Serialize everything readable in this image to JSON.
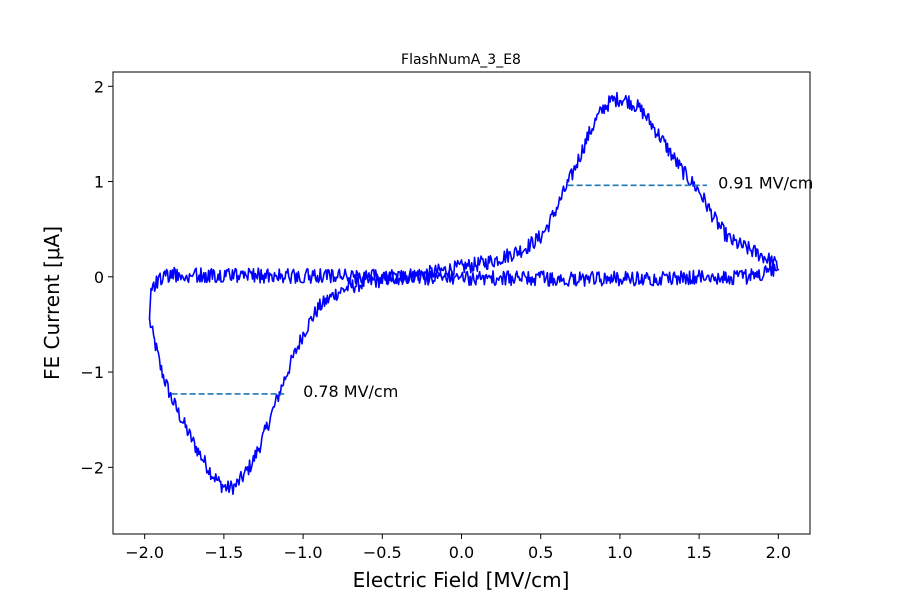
{
  "chart_data": {
    "type": "line",
    "title": "FlashNumA_3_E8",
    "xlabel": "Electric Field [MV/cm]",
    "ylabel": "FE Current [μA]",
    "xlim": [
      -2.2,
      2.2
    ],
    "ylim": [
      -2.7,
      2.15
    ],
    "grid": false,
    "x_ticks": [
      -2.0,
      -1.5,
      -1.0,
      -0.5,
      0.0,
      0.5,
      1.0,
      1.5,
      2.0
    ],
    "x_tick_labels": [
      "−2.0",
      "−1.5",
      "−1.0",
      "−0.5",
      "0.0",
      "0.5",
      "1.0",
      "1.5",
      "2.0"
    ],
    "y_ticks": [
      -2,
      -1,
      0,
      1,
      2
    ],
    "y_tick_labels": [
      "−2",
      "−1",
      "0",
      "1",
      "2"
    ],
    "series": [
      {
        "color": "#0000ff",
        "noise_amplitude": 0.08,
        "points": [
          [
            -1.97,
            -0.45
          ],
          [
            -1.95,
            -0.6
          ],
          [
            -1.92,
            -0.8
          ],
          [
            -1.9,
            -0.95
          ],
          [
            -1.87,
            -1.1
          ],
          [
            -1.83,
            -1.28
          ],
          [
            -1.78,
            -1.45
          ],
          [
            -1.73,
            -1.62
          ],
          [
            -1.68,
            -1.78
          ],
          [
            -1.62,
            -1.95
          ],
          [
            -1.57,
            -2.08
          ],
          [
            -1.52,
            -2.18
          ],
          [
            -1.48,
            -2.22
          ],
          [
            -1.43,
            -2.2
          ],
          [
            -1.38,
            -2.1
          ],
          [
            -1.32,
            -1.95
          ],
          [
            -1.26,
            -1.72
          ],
          [
            -1.2,
            -1.45
          ],
          [
            -1.15,
            -1.22
          ],
          [
            -1.1,
            -1.0
          ],
          [
            -1.05,
            -0.8
          ],
          [
            -1.0,
            -0.6
          ],
          [
            -0.95,
            -0.45
          ],
          [
            -0.9,
            -0.32
          ],
          [
            -0.8,
            -0.18
          ],
          [
            -0.7,
            -0.1
          ],
          [
            -0.6,
            -0.06
          ],
          [
            -0.4,
            0.0
          ],
          [
            -0.2,
            0.04
          ],
          [
            0.0,
            0.1
          ],
          [
            0.1,
            0.13
          ],
          [
            0.2,
            0.17
          ],
          [
            0.3,
            0.23
          ],
          [
            0.4,
            0.3
          ],
          [
            0.5,
            0.42
          ],
          [
            0.55,
            0.55
          ],
          [
            0.6,
            0.72
          ],
          [
            0.65,
            0.9
          ],
          [
            0.7,
            1.08
          ],
          [
            0.75,
            1.28
          ],
          [
            0.8,
            1.48
          ],
          [
            0.85,
            1.65
          ],
          [
            0.9,
            1.78
          ],
          [
            0.95,
            1.85
          ],
          [
            1.0,
            1.87
          ],
          [
            1.05,
            1.85
          ],
          [
            1.1,
            1.8
          ],
          [
            1.15,
            1.72
          ],
          [
            1.2,
            1.6
          ],
          [
            1.25,
            1.48
          ],
          [
            1.3,
            1.35
          ],
          [
            1.35,
            1.22
          ],
          [
            1.4,
            1.1
          ],
          [
            1.45,
            1.0
          ],
          [
            1.5,
            0.9
          ],
          [
            1.55,
            0.75
          ],
          [
            1.6,
            0.6
          ],
          [
            1.65,
            0.48
          ],
          [
            1.7,
            0.38
          ],
          [
            1.8,
            0.3
          ],
          [
            1.9,
            0.22
          ],
          [
            1.97,
            0.15
          ],
          [
            2.0,
            0.1
          ],
          [
            1.95,
            0.05
          ],
          [
            1.8,
            0.0
          ],
          [
            1.5,
            0.0
          ],
          [
            1.0,
            -0.02
          ],
          [
            0.5,
            -0.02
          ],
          [
            0.0,
            -0.01
          ],
          [
            -0.5,
            0.0
          ],
          [
            -1.0,
            0.01
          ],
          [
            -1.5,
            0.02
          ],
          [
            -1.85,
            0.02
          ],
          [
            -1.92,
            -0.05
          ],
          [
            -1.96,
            -0.2
          ],
          [
            -1.97,
            -0.45
          ]
        ]
      }
    ],
    "annotations": [
      {
        "text": "0.91 MV/cm",
        "x_start": 0.67,
        "x_end": 1.55,
        "y": 0.96,
        "text_x": 1.62,
        "text_y": 0.99,
        "color": "#1f77b4"
      },
      {
        "text": "0.78 MV/cm",
        "x_start": -1.83,
        "x_end": -1.12,
        "y": -1.23,
        "text_x": -1.0,
        "text_y": -1.2,
        "color": "#1f77b4"
      }
    ]
  }
}
